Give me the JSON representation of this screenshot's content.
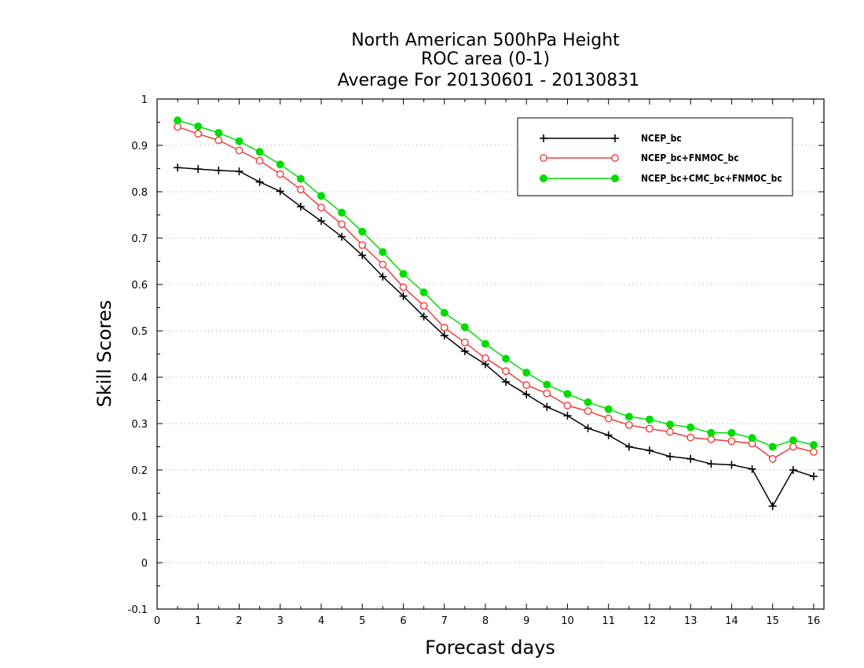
{
  "chart_data": {
    "type": "line",
    "title_lines": [
      "North American 500hPa Height",
      "ROC area (0-1)",
      "Average For 20130601 - 20130831"
    ],
    "xlabel": "Forecast days",
    "ylabel": "Skill Scores",
    "xlim": [
      0,
      16.25
    ],
    "ylim": [
      -0.1,
      1
    ],
    "x_ticks": [
      0,
      1,
      2,
      3,
      4,
      5,
      6,
      7,
      8,
      9,
      10,
      11,
      12,
      13,
      14,
      15,
      16
    ],
    "y_ticks": [
      -0.1,
      0,
      0.1,
      0.2,
      0.3,
      0.4,
      0.5,
      0.6,
      0.7,
      0.8,
      0.9,
      1
    ],
    "y_tick_labels": [
      "-0.1",
      "0",
      "0.1",
      "0.2",
      "0.3",
      "0.4",
      "0.5",
      "0.6",
      "0.7",
      "0.8",
      "0.9",
      "1"
    ],
    "grid": "horizontal dotted",
    "legend_position": "top-right",
    "x": [
      0.5,
      1,
      1.5,
      2,
      2.5,
      3,
      3.5,
      4,
      4.5,
      5,
      5.5,
      6,
      6.5,
      7,
      7.5,
      8,
      8.5,
      9,
      9.5,
      10,
      10.5,
      11,
      11.5,
      12,
      12.5,
      13,
      13.5,
      14,
      14.5,
      15,
      15.5,
      16
    ],
    "series": [
      {
        "name": "NCEP_bc",
        "color": "#000000",
        "marker": "plus",
        "values": [
          0.852,
          0.849,
          0.846,
          0.844,
          0.821,
          0.801,
          0.768,
          0.737,
          0.703,
          0.663,
          0.617,
          0.575,
          0.531,
          0.49,
          0.456,
          0.428,
          0.39,
          0.363,
          0.336,
          0.317,
          0.29,
          0.275,
          0.25,
          0.242,
          0.229,
          0.224,
          0.213,
          0.211,
          0.202,
          0.122,
          0.2,
          0.186
        ]
      },
      {
        "name": "NCEP_bc+FNMOC_bc",
        "color": "#f03c3c",
        "marker": "open-circle",
        "values": [
          0.94,
          0.925,
          0.911,
          0.889,
          0.867,
          0.838,
          0.805,
          0.766,
          0.73,
          0.685,
          0.643,
          0.594,
          0.554,
          0.507,
          0.475,
          0.441,
          0.413,
          0.383,
          0.365,
          0.339,
          0.327,
          0.311,
          0.297,
          0.289,
          0.282,
          0.27,
          0.266,
          0.262,
          0.257,
          0.224,
          0.25,
          0.239
        ]
      },
      {
        "name": "NCEP_bc+CMC_bc+FNMOC_bc",
        "color": "#00dc00",
        "marker": "filled-circle",
        "values": [
          0.954,
          0.941,
          0.927,
          0.909,
          0.886,
          0.859,
          0.828,
          0.791,
          0.755,
          0.714,
          0.67,
          0.623,
          0.583,
          0.539,
          0.508,
          0.472,
          0.44,
          0.41,
          0.384,
          0.364,
          0.346,
          0.331,
          0.315,
          0.309,
          0.298,
          0.292,
          0.28,
          0.28,
          0.269,
          0.25,
          0.264,
          0.254
        ]
      }
    ]
  }
}
